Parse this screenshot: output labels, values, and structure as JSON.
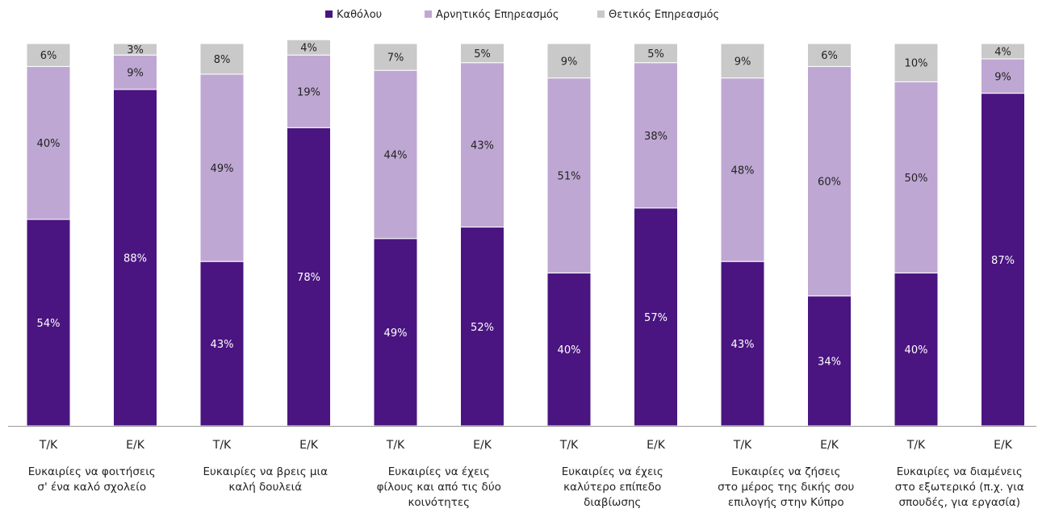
{
  "chart_data": {
    "type": "bar",
    "stacked": true,
    "normalized_percent": true,
    "legend_position": "top-center",
    "title": "",
    "xlabel": "",
    "ylabel": "",
    "ylim": [
      0,
      100
    ],
    "grid": false,
    "legend": [
      {
        "name": "Καθόλου",
        "color": "#4a1580"
      },
      {
        "name": "Αρνητικός Επηρεασμός",
        "color": "#bfa7d3"
      },
      {
        "name": "Θετικός Επηρεασμός",
        "color": "#c9c9c9"
      }
    ],
    "categories": [
      "Τ/Κ",
      "Ε/Κ",
      "Τ/Κ",
      "Ε/Κ",
      "Τ/Κ",
      "Ε/Κ",
      "Τ/Κ",
      "Ε/Κ",
      "Τ/Κ",
      "Ε/Κ",
      "Τ/Κ",
      "Ε/Κ"
    ],
    "groups": [
      {
        "label_lines": [
          "Ευκαιρίες να φοιτήσεις",
          "σ' ένα καλό σχολείο"
        ]
      },
      {
        "label_lines": [
          "Ευκαιρίες να βρεις μια",
          "καλή δουλειά"
        ]
      },
      {
        "label_lines": [
          "Ευκαιρίες να έχεις",
          "φίλους και από τις δύο",
          "κοινότητες"
        ]
      },
      {
        "label_lines": [
          "Ευκαιρίες να έχεις",
          "καλύτερο επίπεδο",
          "διαβίωσης"
        ]
      },
      {
        "label_lines": [
          "Ευκαιρίες να ζήσεις",
          "στο μέρος της δικής σου",
          "επιλογής στην Κύπρο"
        ]
      },
      {
        "label_lines": [
          "Ευκαιρίες να διαμένεις",
          "στο εξωτερικό (π.χ. για",
          "σπουδές, για εργασία)"
        ]
      }
    ],
    "series": [
      {
        "name": "Καθόλου",
        "color": "#4a1580",
        "values": [
          54,
          88,
          43,
          78,
          49,
          52,
          40,
          57,
          43,
          34,
          40,
          87
        ]
      },
      {
        "name": "Αρνητικός Επηρεασμός",
        "color": "#bfa7d3",
        "values": [
          40,
          9,
          49,
          19,
          44,
          43,
          51,
          38,
          48,
          60,
          50,
          9
        ]
      },
      {
        "name": "Θετικός Επηρεασμός",
        "color": "#c9c9c9",
        "values": [
          6,
          3,
          8,
          4,
          7,
          5,
          9,
          5,
          9,
          6,
          10,
          4
        ]
      }
    ],
    "value_label_suffix": "%"
  }
}
